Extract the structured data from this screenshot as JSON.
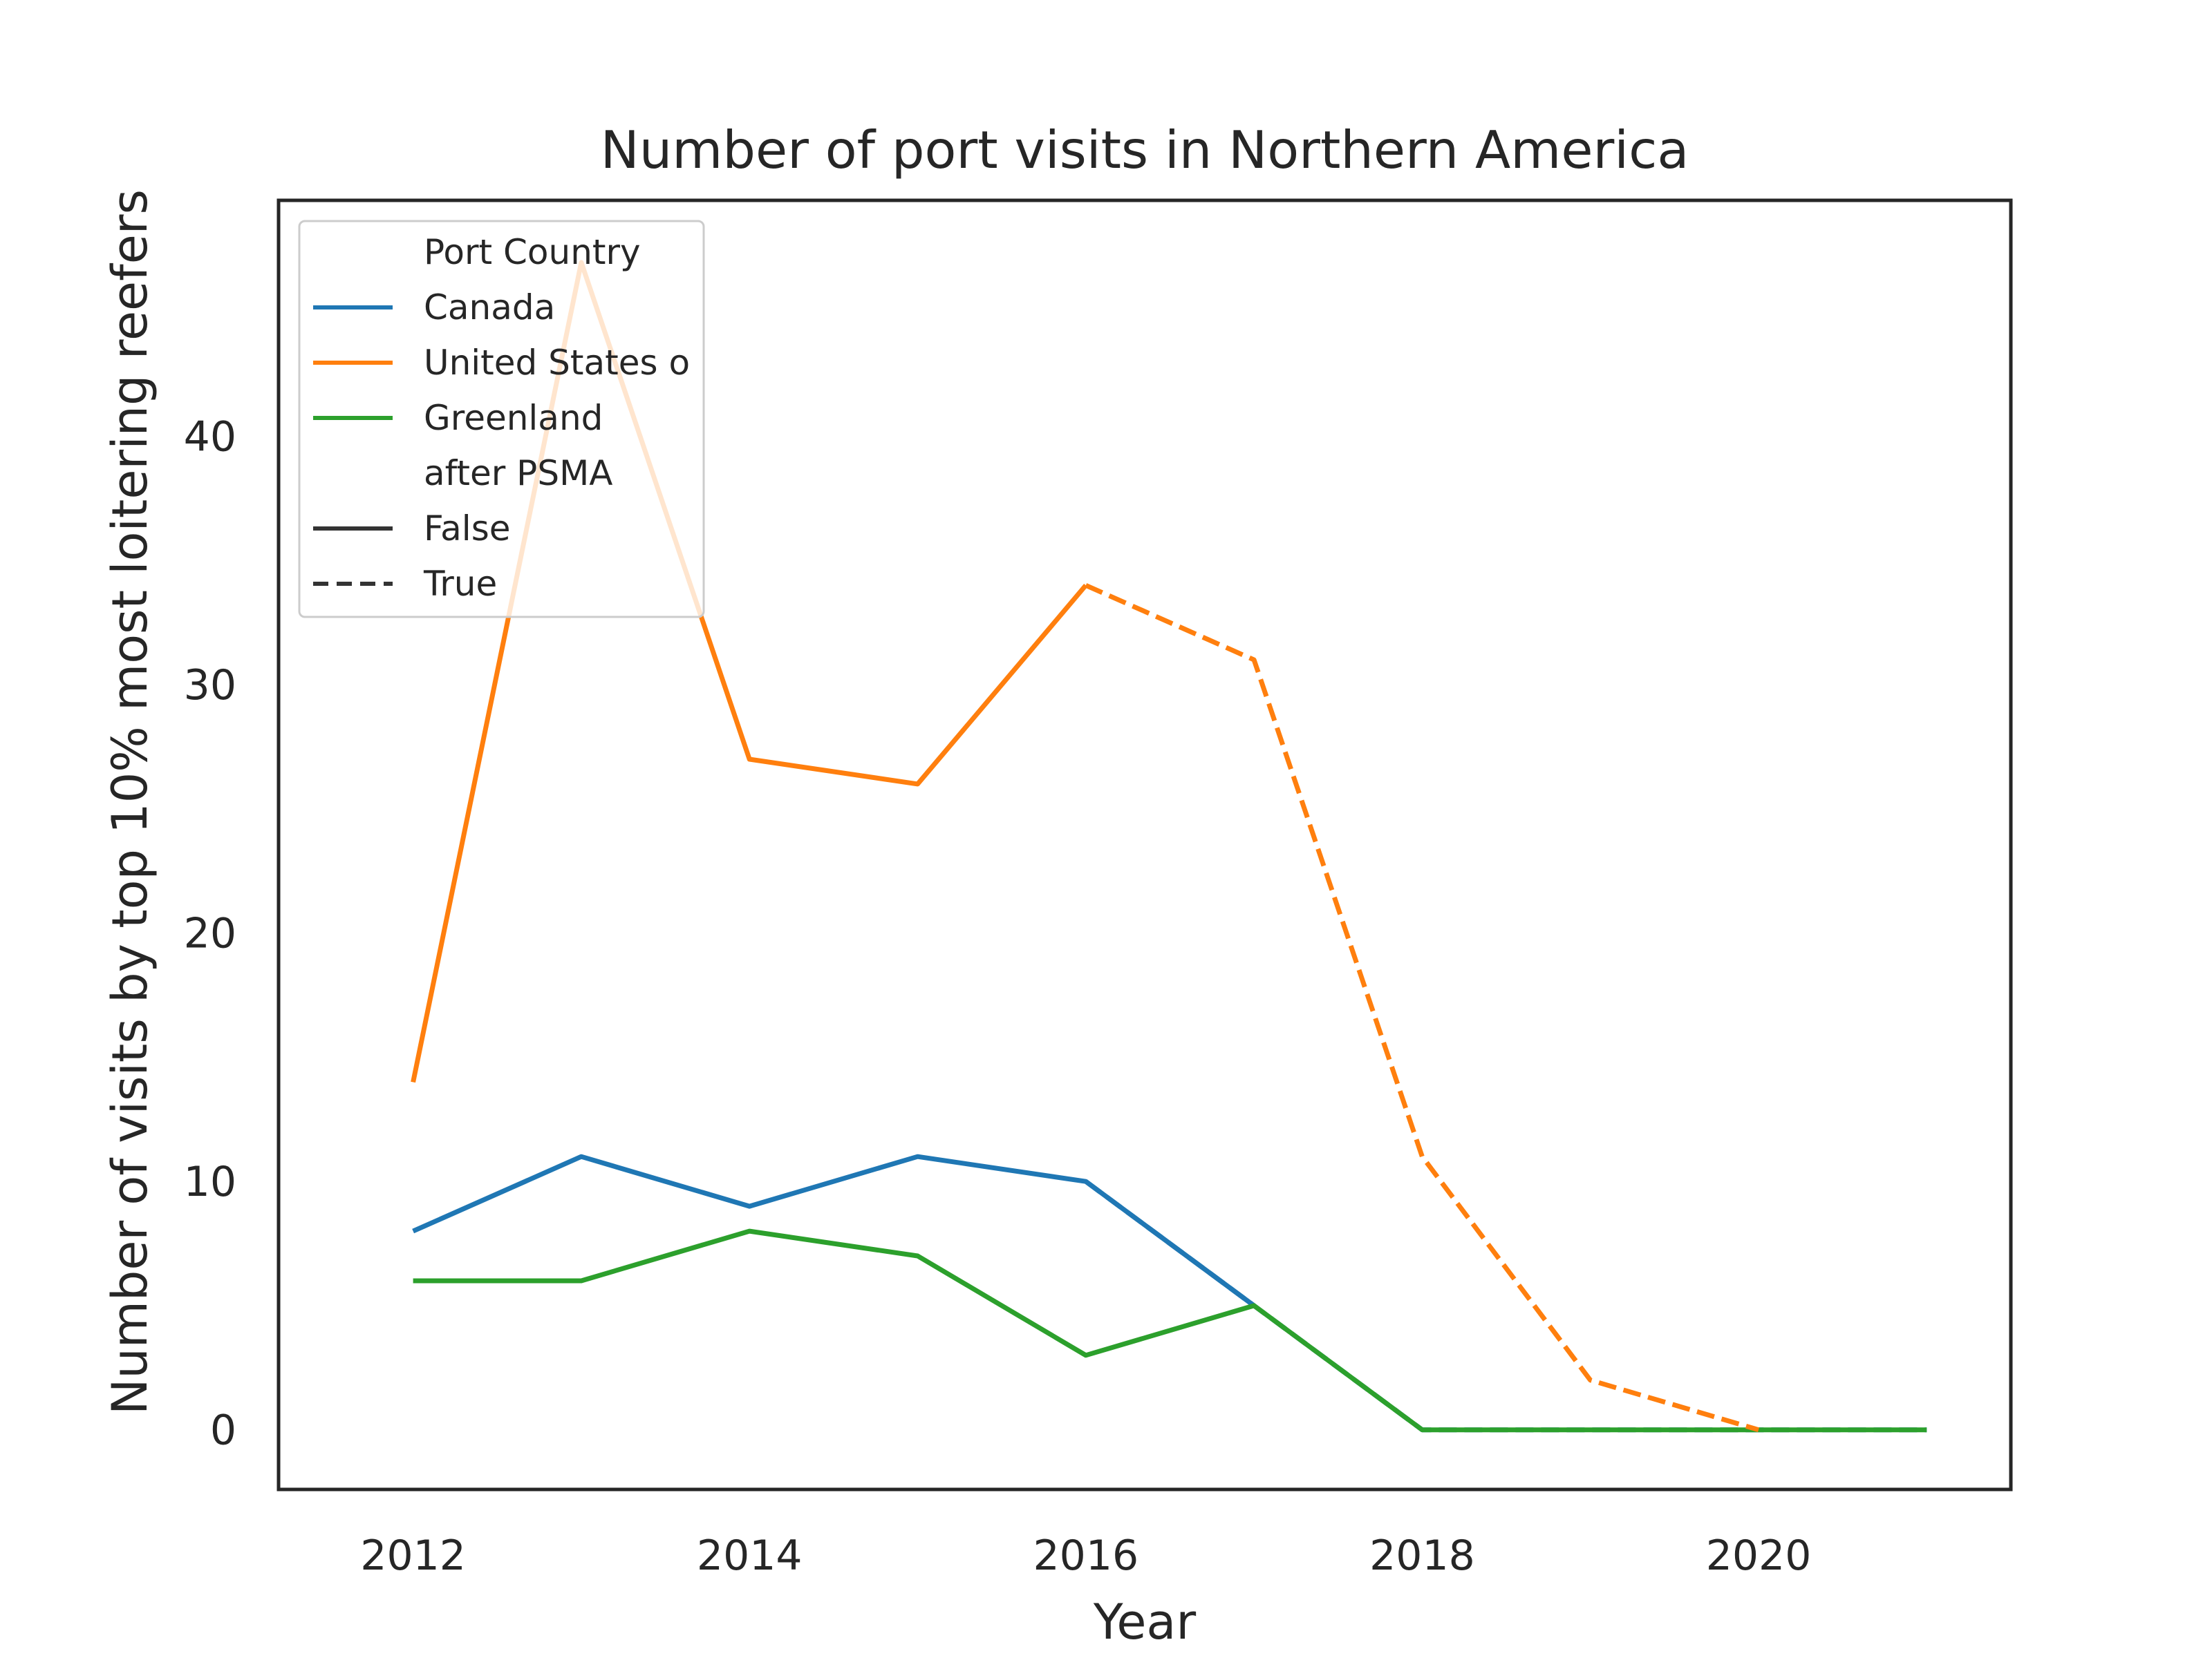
{
  "chart_data": {
    "type": "line",
    "title": "Number of port visits in Northern America",
    "xlabel": "Year",
    "ylabel": "Number of visits by top 10% most loitering reefers",
    "xlim": [
      2011.2,
      2021.5
    ],
    "ylim": [
      -2.4,
      49.5
    ],
    "x_ticks": [
      2012,
      2014,
      2016,
      2018,
      2020
    ],
    "y_ticks": [
      0,
      10,
      20,
      30,
      40
    ],
    "grid": false,
    "legend_position": "upper-left",
    "legend": {
      "hue_title": "Port Country",
      "style_title": "after PSMA",
      "entries": [
        {
          "label": "Canada",
          "color": "#1f77b4",
          "dash": "solid"
        },
        {
          "label": "United States o",
          "color": "#ff7f0e",
          "dash": "solid"
        },
        {
          "label": "Greenland",
          "color": "#2ca02c",
          "dash": "solid"
        }
      ],
      "style_entries": [
        {
          "label": "False",
          "color": "#333333",
          "dash": "solid"
        },
        {
          "label": "True",
          "color": "#333333",
          "dash": "dashed"
        }
      ]
    },
    "series": [
      {
        "name": "Canada",
        "after_psma": "False",
        "color": "#1f77b4",
        "dash": "solid",
        "x": [
          2012,
          2013,
          2014,
          2015,
          2016,
          2017
        ],
        "y": [
          8,
          11,
          9,
          11,
          10,
          5
        ]
      },
      {
        "name": "Canada",
        "after_psma": "True",
        "color": "#1f77b4",
        "dash": "dashed",
        "x": [
          2016,
          2017,
          2018,
          2019,
          2020,
          2021
        ],
        "y": [
          10,
          5,
          0,
          0,
          0,
          0
        ]
      },
      {
        "name": "Greenland",
        "after_psma": "False",
        "color": "#2ca02c",
        "dash": "solid",
        "x": [
          2012,
          2013,
          2014,
          2015,
          2016,
          2017,
          2018,
          2019,
          2020,
          2021
        ],
        "y": [
          6,
          6,
          8,
          7,
          3,
          5,
          0,
          0,
          0,
          0
        ]
      },
      {
        "name": "United States o",
        "after_psma": "False",
        "color": "#ff7f0e",
        "dash": "solid",
        "x": [
          2012,
          2013,
          2014,
          2015,
          2016
        ],
        "y": [
          14,
          47,
          27,
          26,
          34
        ]
      },
      {
        "name": "United States o",
        "after_psma": "True",
        "color": "#ff7f0e",
        "dash": "dashed",
        "x": [
          2016,
          2017,
          2018,
          2019,
          2020
        ],
        "y": [
          34,
          31,
          11,
          2,
          0
        ]
      }
    ]
  }
}
